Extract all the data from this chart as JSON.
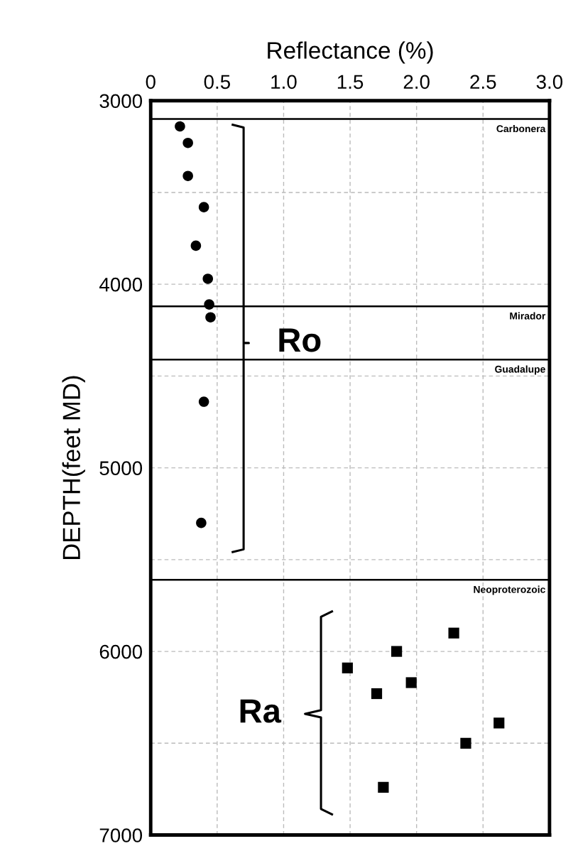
{
  "chart_data": {
    "type": "scatter",
    "xlabel": "Reflectance (%)",
    "ylabel": "DEPTH(feet MD)",
    "xlim": [
      0,
      3.0
    ],
    "xticks": [
      0,
      {
        "value": 0.5,
        "label": "0.5"
      },
      {
        "value": 1,
        "label": "1.0"
      },
      {
        "value": 1.5,
        "label": "1.5"
      },
      {
        "value": 2,
        "label": "2.0"
      },
      {
        "value": 2.5,
        "label": "2.5"
      },
      {
        "value": 3,
        "label": "3.0"
      }
    ],
    "ylim": [
      7000,
      3000
    ],
    "yticks": [
      3000,
      {
        "value": 3500,
        "label": null
      },
      4000,
      {
        "value": 4500,
        "label": null
      },
      5000,
      {
        "value": 5500,
        "label": null
      },
      6000,
      {
        "value": 6500,
        "label": null
      },
      7000
    ],
    "grid": true,
    "legend": false,
    "series": [
      {
        "color": "#000000",
        "marker": "circle",
        "x": [
          0.22,
          0.28,
          0.28,
          0.4,
          0.34,
          0.43,
          0.44,
          0.45,
          0.4,
          0.38
        ],
        "values": [
          3140,
          3230,
          3410,
          3580,
          3790,
          3970,
          4110,
          4180,
          4640,
          5300
        ]
      },
      {
        "color": "#000000",
        "marker": "square",
        "x": [
          1.48,
          1.7,
          1.85,
          1.96,
          2.28,
          2.62,
          2.37,
          1.75
        ],
        "values": [
          6090,
          6230,
          6000,
          6170,
          5900,
          6390,
          6500,
          6740
        ]
      }
    ],
    "ref_lines": [
      {
        "axis": "y",
        "value": 3100,
        "label": "Carbonera",
        "color": "#000000"
      },
      {
        "axis": "y",
        "value": 4120,
        "label": "Mirador",
        "color": "#000000"
      },
      {
        "axis": "y",
        "value": 4410,
        "label": "Guadalupe",
        "color": "#000000"
      },
      {
        "axis": "y",
        "value": 5610,
        "label": "Neoproterozoic",
        "color": "#000000"
      }
    ],
    "annotations": [
      "Ro",
      "Ra"
    ]
  }
}
